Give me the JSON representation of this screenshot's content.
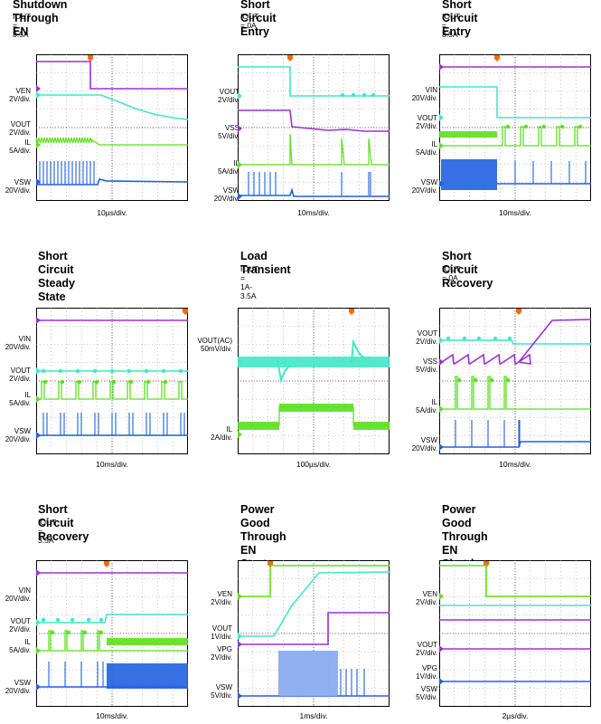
{
  "colors": {
    "purple": "#9b30d8",
    "cyan": "#3fe8c6",
    "green": "#5be01c",
    "blue": "#2060e0",
    "trigger": "#ff6a00",
    "grid": "#9a9a9a",
    "frame": "#000000"
  },
  "chart_data": [
    {
      "type": "line",
      "title": "Shutdown Through EN",
      "subtitle": "IOUT = 3.5A",
      "xlabel": "10µs/div.",
      "channels": [
        {
          "name": "VEN",
          "scale": "2V/div.",
          "marker": "2"
        },
        {
          "name": "VOUT",
          "scale": "2V/div.",
          "marker": "1"
        },
        {
          "name": "IL",
          "scale": "5A/div.",
          "marker": "3"
        },
        {
          "name": "VSW",
          "scale": "20V/div.",
          "marker": "4"
        }
      ]
    },
    {
      "type": "line",
      "title": "Short Circuit Entry",
      "subtitle": "IOUT = 0A",
      "xlabel": "10ms/div.",
      "channels": [
        {
          "name": "VOUT",
          "scale": "2V/div.",
          "marker": "1"
        },
        {
          "name": "VSS",
          "scale": "5V/div.",
          "marker": "2"
        },
        {
          "name": "IL",
          "scale": "5A/div.",
          "marker": "3"
        },
        {
          "name": "VSW",
          "scale": "20V/div.",
          "marker": "4"
        }
      ]
    },
    {
      "type": "line",
      "title": "Short Circuit Entry",
      "subtitle": "IOUT = 3.5A",
      "xlabel": "10ms/div.",
      "channels": [
        {
          "name": "VIN",
          "scale": "20V/div.",
          "marker": "2"
        },
        {
          "name": "VOUT",
          "scale": "2V/div.",
          "marker": "1"
        },
        {
          "name": "IL",
          "scale": "5A/div.",
          "marker": "3"
        },
        {
          "name": "VSW",
          "scale": "20V/div.",
          "marker": "4"
        }
      ]
    },
    {
      "type": "line",
      "title": "Short Circuit Steady State",
      "subtitle": "",
      "xlabel": "10ms/div.",
      "channels": [
        {
          "name": "VIN",
          "scale": "20V/div.",
          "marker": "2"
        },
        {
          "name": "VOUT",
          "scale": "2V/div.",
          "marker": "1"
        },
        {
          "name": "IL",
          "scale": "5A/div.",
          "marker": "3"
        },
        {
          "name": "VSW",
          "scale": "20V/div.",
          "marker": "4"
        }
      ]
    },
    {
      "type": "line",
      "title": "Load Transient",
      "subtitle": "IOUT = 1A-3.5A",
      "xlabel": "100µs/div.",
      "channels": [
        {
          "name": "VOUT(AC)",
          "scale": "50mV/div.",
          "marker": "1"
        },
        {
          "name": "IL",
          "scale": "2A/div.",
          "marker": "3"
        }
      ]
    },
    {
      "type": "line",
      "title": "Short Circuit Recovery",
      "subtitle": "IOUT = 0A",
      "xlabel": "10ms/div.",
      "channels": [
        {
          "name": "VOUT",
          "scale": "2V/div.",
          "marker": "1"
        },
        {
          "name": "VSS",
          "scale": "5V/div.",
          "marker": "2"
        },
        {
          "name": "IL",
          "scale": "5A/div.",
          "marker": "3"
        },
        {
          "name": "VSW",
          "scale": "20V/div.",
          "marker": "4"
        }
      ]
    },
    {
      "type": "line",
      "title": "Short Circuit Recovery",
      "subtitle": "IOUT = 3.5A",
      "xlabel": "10ms/div.",
      "channels": [
        {
          "name": "VIN",
          "scale": "20V/div.",
          "marker": "2"
        },
        {
          "name": "VOUT",
          "scale": "2V/div.",
          "marker": "1"
        },
        {
          "name": "IL",
          "scale": "5A/div.",
          "marker": "3"
        },
        {
          "name": "VSW",
          "scale": "20V/div.",
          "marker": "4"
        }
      ]
    },
    {
      "type": "line",
      "title": "Power Good Through EN\nStart-up",
      "subtitle": "",
      "xlabel": "1ms/div.",
      "channels": [
        {
          "name": "VEN",
          "scale": "2V/div.",
          "marker": "1"
        },
        {
          "name": "VOUT",
          "scale": "1V/div.",
          "marker": "2"
        },
        {
          "name": "VPG",
          "scale": "2V/div.",
          "marker": ""
        },
        {
          "name": "VSW",
          "scale": "5V/div.",
          "marker": "4"
        }
      ]
    },
    {
      "type": "line",
      "title": "Power Good Through EN\nShutdown",
      "subtitle": "",
      "xlabel": "2µs/div.",
      "channels": [
        {
          "name": "VEN",
          "scale": "2V/div.",
          "marker": "1"
        },
        {
          "name": "VOUT",
          "scale": "2V/div.",
          "marker": "2"
        },
        {
          "name": "VPG",
          "scale": "1V/div.",
          "marker": "3"
        },
        {
          "name": "VSW",
          "scale": "5V/div.",
          "marker": "4"
        }
      ]
    }
  ]
}
